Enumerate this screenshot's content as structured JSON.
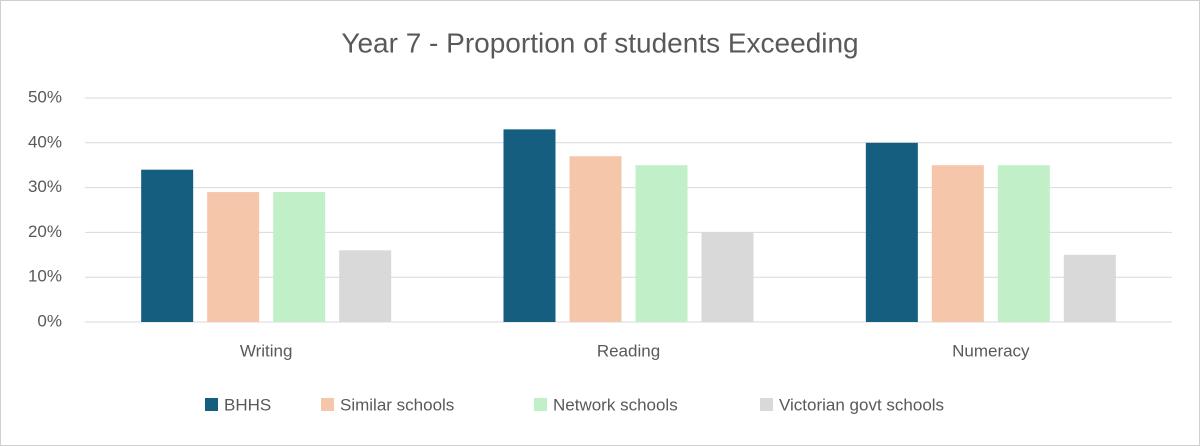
{
  "chart_data": {
    "type": "bar",
    "title": "Year 7 - Proportion of students Exceeding",
    "categories": [
      "Writing",
      "Reading",
      "Numeracy"
    ],
    "series": [
      {
        "name": "BHHS",
        "color": "#155e7f",
        "values": [
          34,
          43,
          40
        ]
      },
      {
        "name": "Similar schools",
        "color": "#f5c6aa",
        "values": [
          29,
          37,
          35
        ]
      },
      {
        "name": "Network schools",
        "color": "#c1efc8",
        "values": [
          29,
          35,
          35
        ]
      },
      {
        "name": "Victorian govt schools",
        "color": "#d9d9d9",
        "values": [
          16,
          20,
          15
        ]
      }
    ],
    "ylim": [
      0,
      50
    ],
    "yticks": [
      {
        "value": 0,
        "label": "0%"
      },
      {
        "value": 10,
        "label": "10%"
      },
      {
        "value": 20,
        "label": "20%"
      },
      {
        "value": 30,
        "label": "30%"
      },
      {
        "value": 40,
        "label": "40%"
      },
      {
        "value": 50,
        "label": "50%"
      }
    ],
    "grid": true,
    "legend": "bottom"
  }
}
